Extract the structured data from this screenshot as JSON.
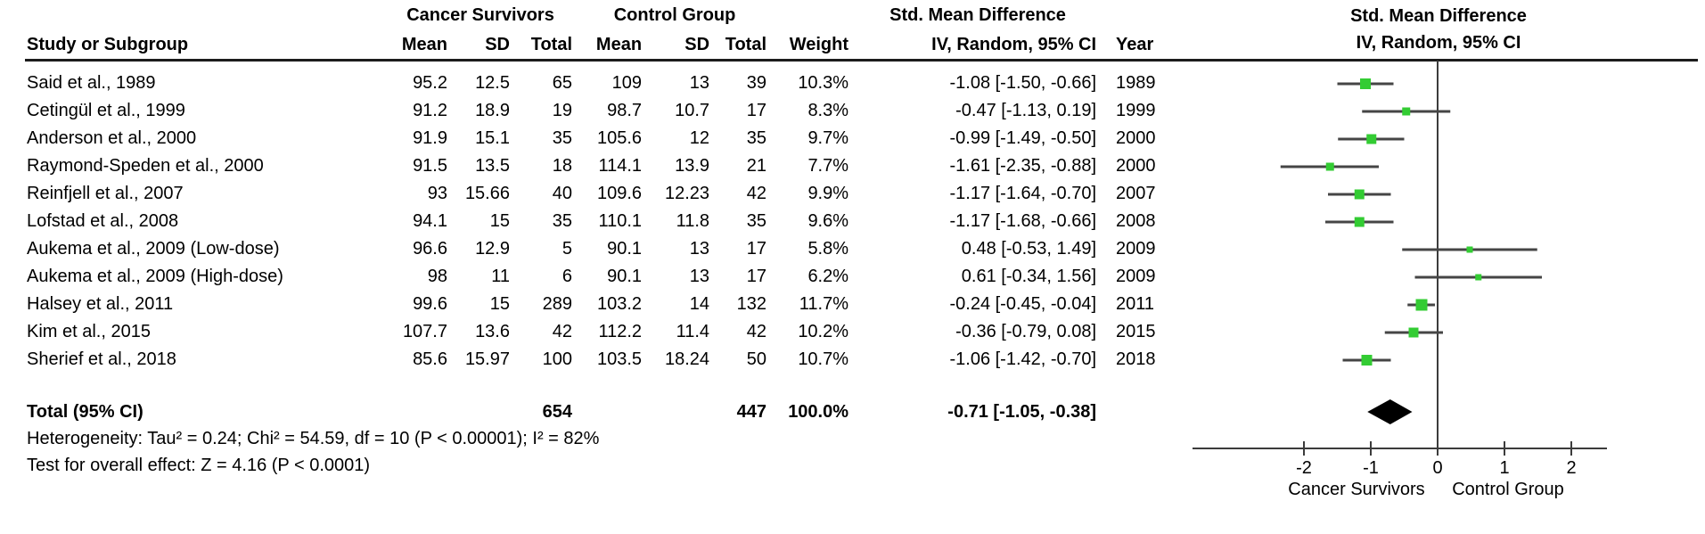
{
  "chart_data": {
    "type": "forest",
    "effect_label": "Std. Mean Difference",
    "method_label": "IV, Random, 95% CI",
    "groups": {
      "experimental": "Cancer Survivors",
      "control": "Control Group"
    },
    "columns": {
      "study": "Study or Subgroup",
      "mean": "Mean",
      "sd": "SD",
      "total": "Total",
      "weight": "Weight",
      "effect": "IV, Random, 95% CI",
      "year": "Year"
    },
    "studies": [
      {
        "name": "Said et al., 1989",
        "mean1": "95.2",
        "sd1": "12.5",
        "total1": "65",
        "mean2": "109",
        "sd2": "13",
        "total2": "39",
        "weight": "10.3%",
        "weight_value": 10.3,
        "effect_text": "-1.08 [-1.50, -0.66]",
        "year": "1989",
        "estimate": -1.08,
        "ci_low": -1.5,
        "ci_high": -0.66
      },
      {
        "name": "Cetingül et al., 1999",
        "mean1": "91.2",
        "sd1": "18.9",
        "total1": "19",
        "mean2": "98.7",
        "sd2": "10.7",
        "total2": "17",
        "weight": "8.3%",
        "weight_value": 8.3,
        "effect_text": "-0.47 [-1.13, 0.19]",
        "year": "1999",
        "estimate": -0.47,
        "ci_low": -1.13,
        "ci_high": 0.19
      },
      {
        "name": "Anderson et al., 2000",
        "mean1": "91.9",
        "sd1": "15.1",
        "total1": "35",
        "mean2": "105.6",
        "sd2": "12",
        "total2": "35",
        "weight": "9.7%",
        "weight_value": 9.7,
        "effect_text": "-0.99 [-1.49, -0.50]",
        "year": "2000",
        "estimate": -0.99,
        "ci_low": -1.49,
        "ci_high": -0.5
      },
      {
        "name": "Raymond-Speden et al., 2000",
        "mean1": "91.5",
        "sd1": "13.5",
        "total1": "18",
        "mean2": "114.1",
        "sd2": "13.9",
        "total2": "21",
        "weight": "7.7%",
        "weight_value": 7.7,
        "effect_text": "-1.61 [-2.35, -0.88]",
        "year": "2000",
        "estimate": -1.61,
        "ci_low": -2.35,
        "ci_high": -0.88
      },
      {
        "name": "Reinfjell et al., 2007",
        "mean1": "93",
        "sd1": "15.66",
        "total1": "40",
        "mean2": "109.6",
        "sd2": "12.23",
        "total2": "42",
        "weight": "9.9%",
        "weight_value": 9.9,
        "effect_text": "-1.17 [-1.64, -0.70]",
        "year": "2007",
        "estimate": -1.17,
        "ci_low": -1.64,
        "ci_high": -0.7
      },
      {
        "name": "Lofstad et al., 2008",
        "mean1": "94.1",
        "sd1": "15",
        "total1": "35",
        "mean2": "110.1",
        "sd2": "11.8",
        "total2": "35",
        "weight": "9.6%",
        "weight_value": 9.6,
        "effect_text": "-1.17 [-1.68, -0.66]",
        "year": "2008",
        "estimate": -1.17,
        "ci_low": -1.68,
        "ci_high": -0.66
      },
      {
        "name": "Aukema et al., 2009 (Low-dose)",
        "mean1": "96.6",
        "sd1": "12.9",
        "total1": "5",
        "mean2": "90.1",
        "sd2": "13",
        "total2": "17",
        "weight": "5.8%",
        "weight_value": 5.8,
        "effect_text": "0.48 [-0.53, 1.49]",
        "year": "2009",
        "estimate": 0.48,
        "ci_low": -0.53,
        "ci_high": 1.49
      },
      {
        "name": "Aukema et al., 2009 (High-dose)",
        "mean1": "98",
        "sd1": "11",
        "total1": "6",
        "mean2": "90.1",
        "sd2": "13",
        "total2": "17",
        "weight": "6.2%",
        "weight_value": 6.2,
        "effect_text": "0.61 [-0.34, 1.56]",
        "year": "2009",
        "estimate": 0.61,
        "ci_low": -0.34,
        "ci_high": 1.56
      },
      {
        "name": "Halsey et al., 2011",
        "mean1": "99.6",
        "sd1": "15",
        "total1": "289",
        "mean2": "103.2",
        "sd2": "14",
        "total2": "132",
        "weight": "11.7%",
        "weight_value": 11.7,
        "effect_text": "-0.24 [-0.45, -0.04]",
        "year": "2011",
        "estimate": -0.24,
        "ci_low": -0.45,
        "ci_high": -0.04
      },
      {
        "name": "Kim et al., 2015",
        "mean1": "107.7",
        "sd1": "13.6",
        "total1": "42",
        "mean2": "112.2",
        "sd2": "11.4",
        "total2": "42",
        "weight": "10.2%",
        "weight_value": 10.2,
        "effect_text": "-0.36 [-0.79, 0.08]",
        "year": "2015",
        "estimate": -0.36,
        "ci_low": -0.79,
        "ci_high": 0.08
      },
      {
        "name": "Sherief et al., 2018",
        "mean1": "85.6",
        "sd1": "15.97",
        "total1": "100",
        "mean2": "103.5",
        "sd2": "18.24",
        "total2": "50",
        "weight": "10.7%",
        "weight_value": 10.7,
        "effect_text": "-1.06 [-1.42, -0.70]",
        "year": "2018",
        "estimate": -1.06,
        "ci_low": -1.42,
        "ci_high": -0.7
      }
    ],
    "total": {
      "label": "Total (95% CI)",
      "total1": "654",
      "total2": "447",
      "weight": "100.0%",
      "effect_text": "-0.71 [-1.05, -0.38]",
      "estimate": -0.71,
      "ci_low": -1.05,
      "ci_high": -0.38
    },
    "heterogeneity": "Heterogeneity: Tau² = 0.24; Chi² = 54.59, df = 10 (P < 0.00001); I² = 82%",
    "overall_effect": "Test for overall effect: Z = 4.16 (P < 0.0001)",
    "axis": {
      "ticks": [
        -2,
        -1,
        0,
        1,
        2
      ],
      "xmin": -3.7,
      "xmax": 2.6,
      "favours_left": "Cancer Survivors",
      "favours_right": "Control Group"
    },
    "colors": {
      "marker_green": "#33cc33",
      "ci_line": "#454545",
      "axis_line": "#3c3c3c",
      "diamond": "#000000",
      "text": "#000000"
    }
  }
}
